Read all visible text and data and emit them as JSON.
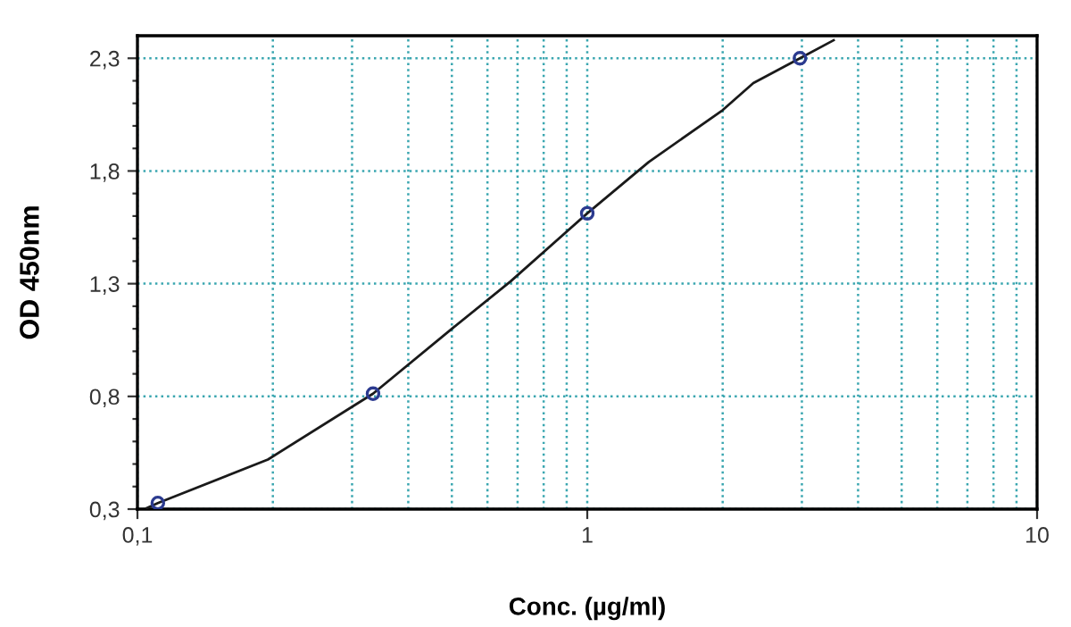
{
  "chart_data": {
    "type": "scatter",
    "xlabel": "Conc. (µg/ml)",
    "ylabel": "OD 450nm",
    "log": "x",
    "series": [
      {
        "color": "#2b3a8f",
        "marker": "circle",
        "x": [
          0.111,
          0.334,
          1,
          2.97
        ],
        "values": [
          0.327,
          0.812,
          1.612,
          2.3
        ]
      },
      {
        "type": "line",
        "color": "#1a1a1a",
        "marker": "none",
        "line_style": "solid",
        "x": [
          0.105,
          0.111,
          0.195,
          0.334,
          0.5,
          0.675,
          1,
          1.37,
          2,
          2.34,
          2.97,
          3.53
        ],
        "values": [
          0.305,
          0.327,
          0.52,
          0.812,
          1.1,
          1.31,
          1.612,
          1.84,
          2.07,
          2.19,
          2.3,
          2.38
        ]
      }
    ],
    "xlim": [
      0.1,
      10
    ],
    "ylim": [
      0.3,
      2.4
    ],
    "xticks": [
      {
        "value": 0.1,
        "label": "0,1"
      },
      {
        "value": 0.2,
        "label": null
      },
      {
        "value": 0.3,
        "label": null
      },
      {
        "value": 0.4,
        "label": null
      },
      {
        "value": 0.5,
        "label": null
      },
      {
        "value": 0.6,
        "label": null
      },
      {
        "value": 0.7,
        "label": null
      },
      {
        "value": 0.8,
        "label": null
      },
      {
        "value": 0.9,
        "label": null
      },
      1,
      {
        "value": 2,
        "label": null
      },
      {
        "value": 3,
        "label": null
      },
      {
        "value": 4,
        "label": null
      },
      {
        "value": 5,
        "label": null
      },
      {
        "value": 6,
        "label": null
      },
      {
        "value": 7,
        "label": null
      },
      {
        "value": 8,
        "label": null
      },
      {
        "value": 9,
        "label": null
      },
      10
    ],
    "yticks": [
      {
        "value": 0.3,
        "label": "0,3"
      },
      {
        "value": 0.4,
        "label": null
      },
      {
        "value": 0.5,
        "label": null
      },
      {
        "value": 0.6,
        "label": null
      },
      {
        "value": 0.7,
        "label": null
      },
      {
        "value": 0.8,
        "label": "0,8"
      },
      {
        "value": 0.9,
        "label": null
      },
      {
        "value": 1.0,
        "label": null
      },
      {
        "value": 1.1,
        "label": null
      },
      {
        "value": 1.2,
        "label": null
      },
      {
        "value": 1.3,
        "label": "1,3"
      },
      {
        "value": 1.4,
        "label": null
      },
      {
        "value": 1.5,
        "label": null
      },
      {
        "value": 1.6,
        "label": null
      },
      {
        "value": 1.7,
        "label": null
      },
      {
        "value": 1.8,
        "label": "1,8"
      },
      {
        "value": 1.9,
        "label": null
      },
      {
        "value": 2.0,
        "label": null
      },
      {
        "value": 2.1,
        "label": null
      },
      {
        "value": 2.2,
        "label": null
      },
      {
        "value": 2.3,
        "label": "2,3"
      }
    ],
    "grid": true
  }
}
